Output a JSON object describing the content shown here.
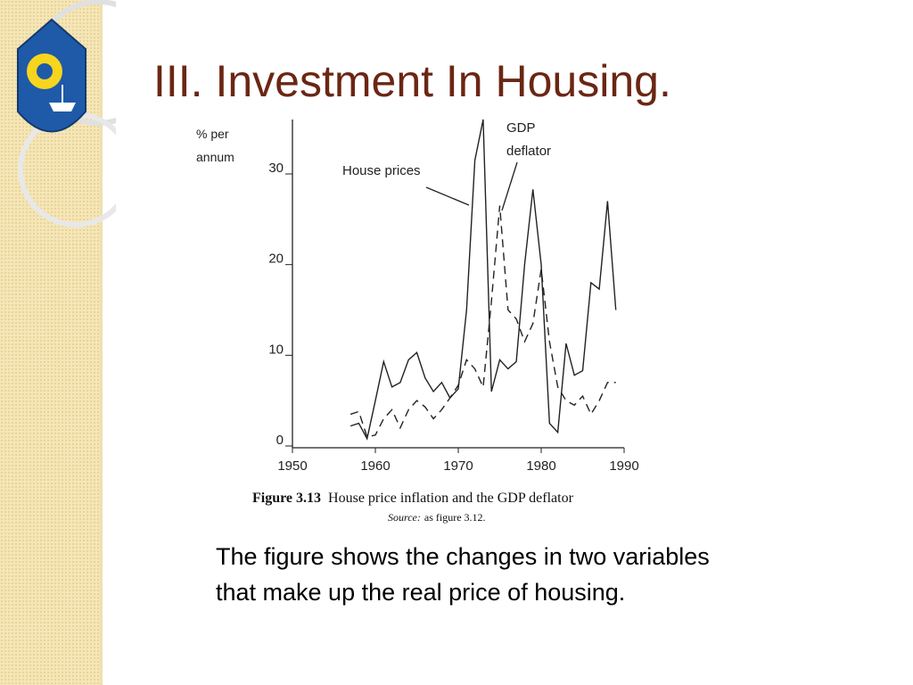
{
  "title": "III. Investment In Housing.",
  "body_text": "The figure shows the changes in two variables that make up the real price of housing.",
  "chart_data": {
    "type": "line",
    "y_label_lines": [
      "% per",
      "annum"
    ],
    "caption_label": "Figure 3.13",
    "caption_text": "House price inflation and the GDP deflator",
    "source_label": "Source:",
    "source_text": "as figure 3.12.",
    "x": [
      1957,
      1958,
      1959,
      1960,
      1961,
      1962,
      1963,
      1964,
      1965,
      1966,
      1967,
      1968,
      1969,
      1970,
      1971,
      1972,
      1973,
      1974,
      1975,
      1976,
      1977,
      1978,
      1979,
      1980,
      1981,
      1982,
      1983,
      1984,
      1985,
      1986,
      1987,
      1988,
      1989
    ],
    "series": [
      {
        "name": "House prices",
        "color": "#222222",
        "dash": false,
        "values": [
          2.2,
          2.5,
          0.8,
          5,
          9.3,
          6.5,
          7,
          9.5,
          10.3,
          7.5,
          6,
          7,
          5.3,
          6.3,
          15,
          31.5,
          36,
          6,
          9.5,
          8.5,
          9.3,
          20,
          28.3,
          20,
          2.5,
          1.5,
          11.3,
          7.8,
          8.3,
          18,
          17.3,
          27,
          15
        ]
      },
      {
        "name": "GDP deflator",
        "color": "#222222",
        "dash": true,
        "values": [
          3.5,
          3.8,
          1,
          1.2,
          3,
          4,
          2,
          4,
          5,
          4.3,
          3,
          4,
          5.3,
          6.7,
          9.5,
          8.5,
          6.5,
          16,
          26.5,
          15,
          14,
          11.5,
          13.5,
          19.5,
          11.5,
          6.5,
          5,
          4.5,
          5.5,
          3.5,
          5,
          7,
          7
        ]
      }
    ],
    "xlim": [
      1950,
      1990
    ],
    "xticks": [
      1950,
      1960,
      1970,
      1980,
      1990
    ],
    "ylim": [
      0,
      36
    ],
    "yticks": [
      0,
      10,
      20,
      30
    ]
  }
}
